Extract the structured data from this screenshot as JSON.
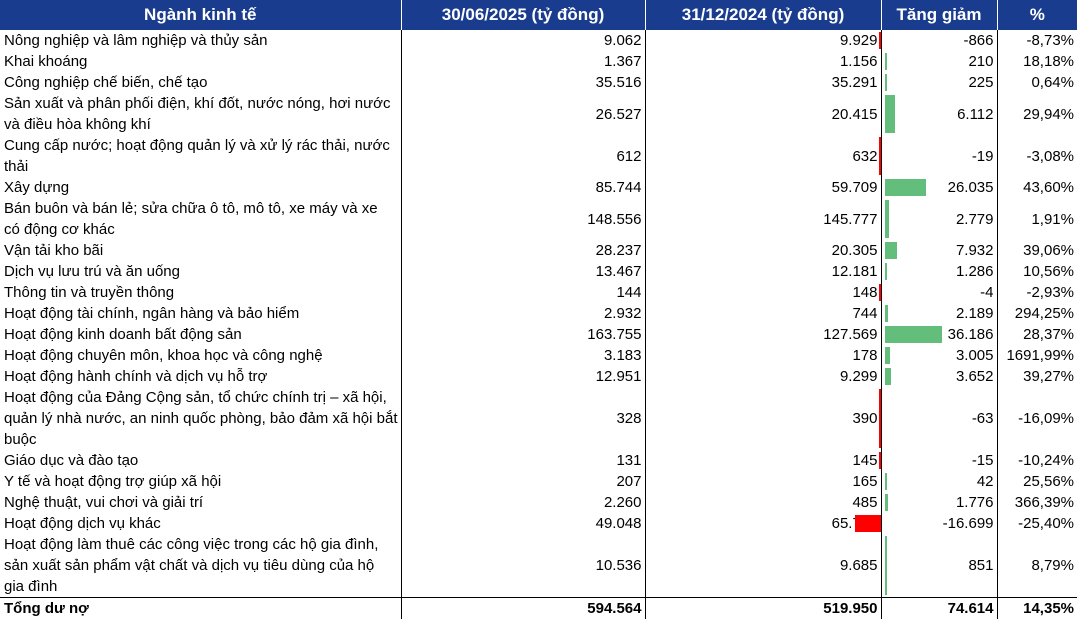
{
  "header": {
    "col_sector": "Ngành kinh tế",
    "col_jun2025": "30/06/2025 (tỷ đồng)",
    "col_dec2024": "31/12/2024 (tỷ đồng)",
    "col_change": "Tăng giảm",
    "col_pct": "%"
  },
  "bar_colors": {
    "positive": "#63be7b",
    "negative": "#ff0000"
  },
  "rows": [
    {
      "name": "Nông nghiệp và lâm nghiệp và thủy sản",
      "jun2025": "9.062",
      "dec2024": "9.929",
      "change": "-866",
      "change_value": -866,
      "pct": "-8,73%"
    },
    {
      "name": "Khai khoáng",
      "jun2025": "1.367",
      "dec2024": "1.156",
      "change": "210",
      "change_value": 210,
      "pct": "18,18%"
    },
    {
      "name": "Công nghiệp chế biến, chế tạo",
      "jun2025": "35.516",
      "dec2024": "35.291",
      "change": "225",
      "change_value": 225,
      "pct": "0,64%"
    },
    {
      "name": "Sản xuất và phân phối điện, khí đốt, nước nóng, hơi nước và điều hòa không khí",
      "jun2025": "26.527",
      "dec2024": "20.415",
      "change": "6.112",
      "change_value": 6112,
      "pct": "29,94%"
    },
    {
      "name": "Cung cấp nước; hoạt động quản lý và xử lý rác thải, nước thải",
      "jun2025": "612",
      "dec2024": "632",
      "change": "-19",
      "change_value": -19,
      "pct": "-3,08%"
    },
    {
      "name": "Xây dựng",
      "jun2025": "85.744",
      "dec2024": "59.709",
      "change": "26.035",
      "change_value": 26035,
      "pct": "43,60%"
    },
    {
      "name": "Bán buôn và bán lẻ; sửa chữa ô tô, mô tô, xe máy và xe có động cơ khác",
      "jun2025": "148.556",
      "dec2024": "145.777",
      "change": "2.779",
      "change_value": 2779,
      "pct": "1,91%"
    },
    {
      "name": "Vận tải kho bãi",
      "jun2025": "28.237",
      "dec2024": "20.305",
      "change": "7.932",
      "change_value": 7932,
      "pct": "39,06%"
    },
    {
      "name": "Dịch vụ lưu trú và ăn uống",
      "jun2025": "13.467",
      "dec2024": "12.181",
      "change": "1.286",
      "change_value": 1286,
      "pct": "10,56%"
    },
    {
      "name": "Thông tin và truyền thông",
      "jun2025": "144",
      "dec2024": "148",
      "change": "-4",
      "change_value": -4,
      "pct": "-2,93%"
    },
    {
      "name": "Hoạt động tài chính, ngân hàng và bảo hiểm",
      "jun2025": "2.932",
      "dec2024": "744",
      "change": "2.189",
      "change_value": 2189,
      "pct": "294,25%"
    },
    {
      "name": "Hoạt động kinh doanh bất động sản",
      "jun2025": "163.755",
      "dec2024": "127.569",
      "change": "36.186",
      "change_value": 36186,
      "pct": "28,37%"
    },
    {
      "name": "Hoạt động chuyên môn, khoa học và công nghệ",
      "jun2025": "3.183",
      "dec2024": "178",
      "change": "3.005",
      "change_value": 3005,
      "pct": "1691,99%"
    },
    {
      "name": "Hoạt động hành chính và dịch vụ hỗ trợ",
      "jun2025": "12.951",
      "dec2024": "9.299",
      "change": "3.652",
      "change_value": 3652,
      "pct": "39,27%"
    },
    {
      "name": "Hoạt động của Đảng Cộng sản, tổ chức chính trị – xã hội, quản lý nhà nước, an ninh quốc phòng, bảo đảm xã hội bắt buộc",
      "jun2025": "328",
      "dec2024": "390",
      "change": "-63",
      "change_value": -63,
      "pct": "-16,09%"
    },
    {
      "name": "Giáo dục và đào tạo",
      "jun2025": "131",
      "dec2024": "145",
      "change": "-15",
      "change_value": -15,
      "pct": "-10,24%"
    },
    {
      "name": "Y tế và hoạt động trợ giúp xã hội",
      "jun2025": "207",
      "dec2024": "165",
      "change": "42",
      "change_value": 42,
      "pct": "25,56%"
    },
    {
      "name": "Nghệ thuật, vui chơi và giải trí",
      "jun2025": "2.260",
      "dec2024": "485",
      "change": "1.776",
      "change_value": 1776,
      "pct": "366,39%"
    },
    {
      "name": "Hoạt động dịch vụ khác",
      "jun2025": "49.048",
      "dec2024": "65.748",
      "change": "-16.699",
      "change_value": -16699,
      "pct": "-25,40%"
    },
    {
      "name": "Hoạt động làm thuê các công việc trong các hộ gia đình, sản xuất sản phẩm vật chất và dịch vụ tiêu dùng của hộ gia đình",
      "jun2025": "10.536",
      "dec2024": "9.685",
      "change": "851",
      "change_value": 851,
      "pct": "8,79%"
    }
  ],
  "total": {
    "name": "Tổng dư nợ",
    "jun2025": "594.564",
    "dec2024": "519.950",
    "change": "74.614",
    "pct": "14,35%"
  }
}
